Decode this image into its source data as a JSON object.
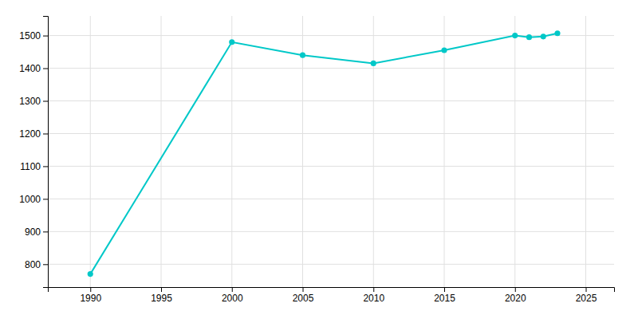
{
  "chart_data": {
    "type": "line",
    "x": [
      1990,
      2000,
      2005,
      2010,
      2015,
      2020,
      2021,
      2022,
      2023
    ],
    "values": [
      770,
      1480,
      1440,
      1415,
      1455,
      1500,
      1495,
      1497,
      1507
    ],
    "color": "#00c8c8",
    "marker": "circle",
    "grid": true,
    "xlim": [
      1987,
      2027
    ],
    "ylim": [
      730,
      1560
    ],
    "xticks": [
      1990,
      1995,
      2000,
      2005,
      2010,
      2015,
      2020,
      2025
    ],
    "yticks": [
      800,
      900,
      1000,
      1100,
      1200,
      1300,
      1400,
      1500
    ]
  }
}
